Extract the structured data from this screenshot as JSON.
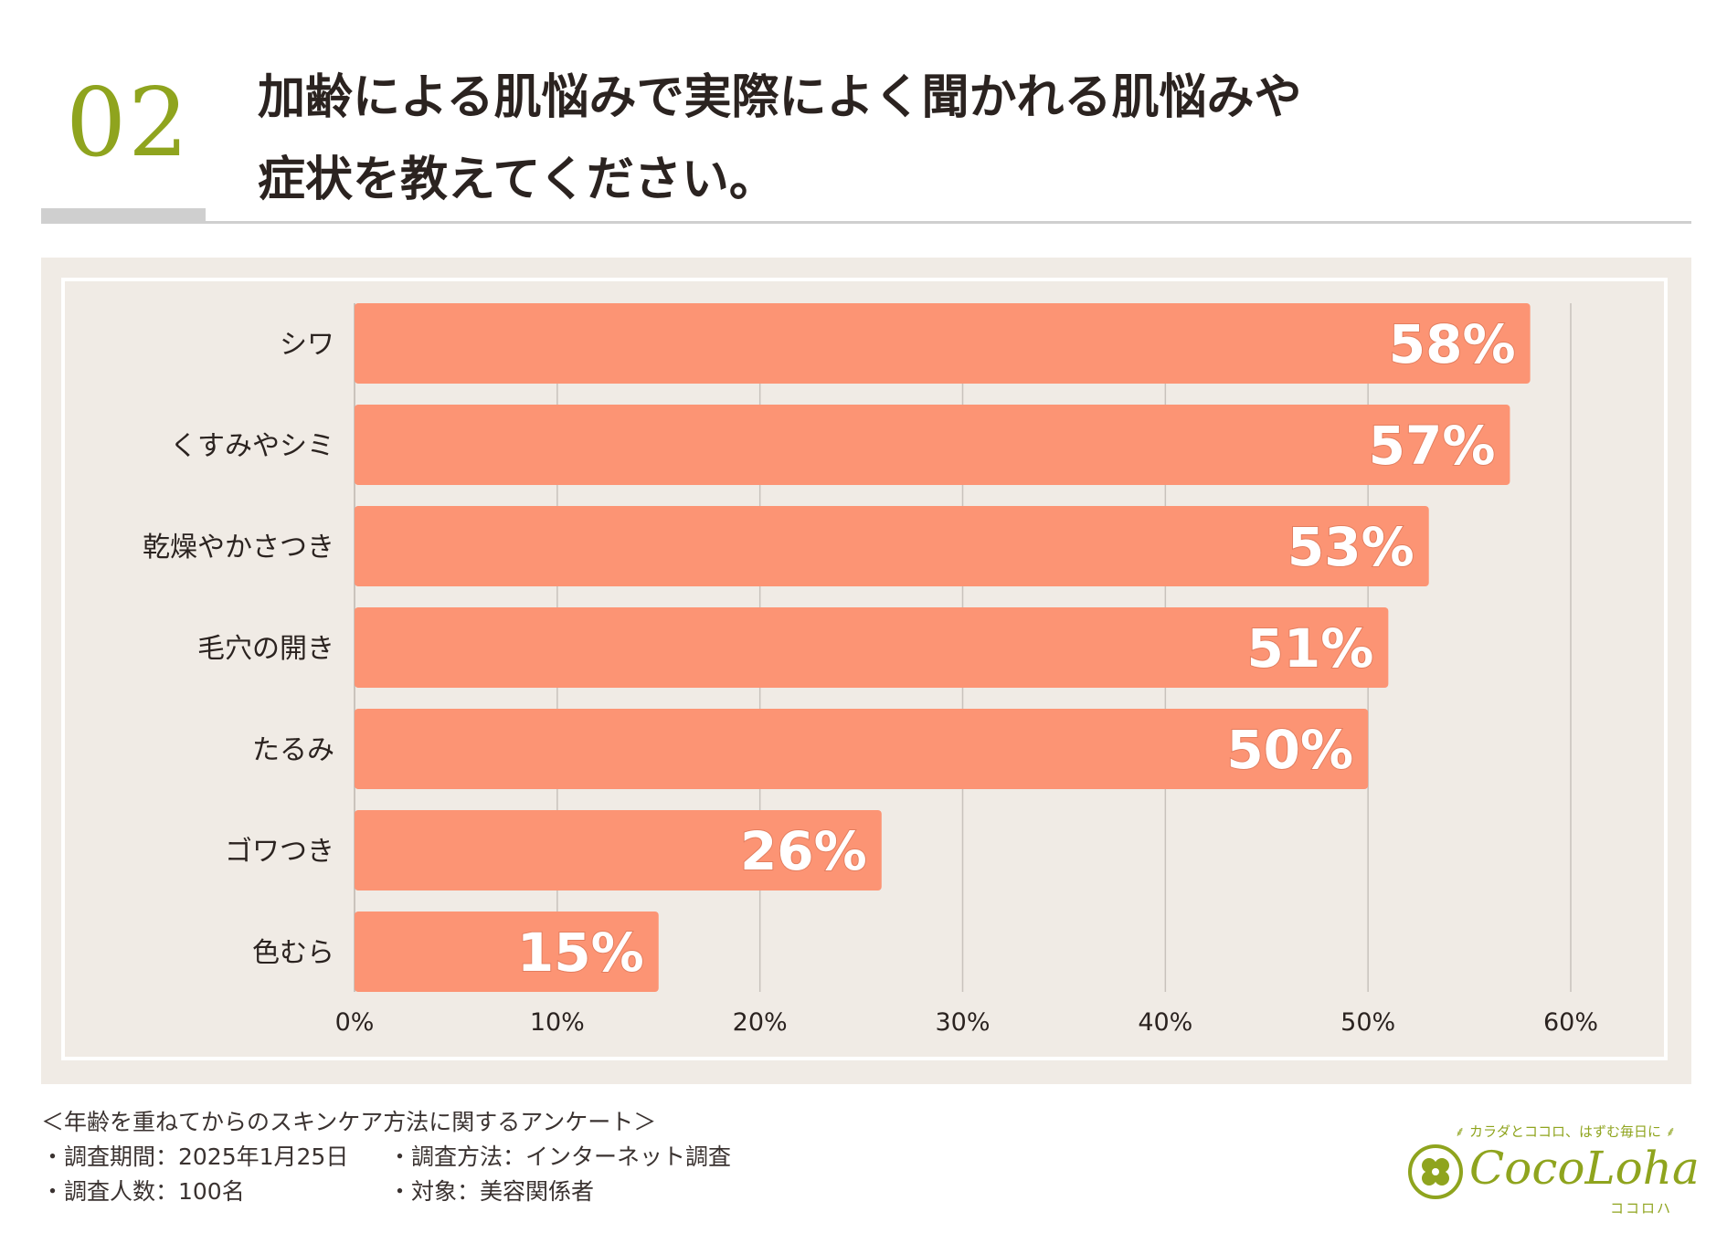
{
  "header": {
    "number": "02",
    "title_line1": "加齢による肌悩みで実際によく聞かれる肌悩みや",
    "title_line2": "症状を教えてください。"
  },
  "chart_data": {
    "type": "bar",
    "orientation": "horizontal",
    "categories": [
      "シワ",
      "くすみやシミ",
      "乾燥やかさつき",
      "毛穴の開き",
      "たるみ",
      "ゴワつき",
      "色むら"
    ],
    "values": [
      58,
      57,
      53,
      51,
      50,
      26,
      15
    ],
    "value_labels": [
      "58%",
      "57%",
      "53%",
      "51%",
      "50%",
      "26%",
      "15%"
    ],
    "xlim": [
      0,
      60
    ],
    "x_ticks": [
      "0%",
      "10%",
      "20%",
      "30%",
      "40%",
      "50%",
      "60%"
    ],
    "grid": true,
    "bar_color": "#fc9474",
    "label_color": "#ffffff"
  },
  "footer": {
    "survey_title": "＜年齢を重ねてからのスキンケア方法に関するアンケート＞",
    "period": "・調査期間：2025年1月25日",
    "method": "・調査方法：インターネット調査",
    "count": "・調査人数：100名",
    "target": "・対象：美容関係者"
  },
  "logo": {
    "tagline": "⸙ カラダとココロ、はずむ毎日に ⸙",
    "name": "CocoLoha",
    "sub": "ココロハ",
    "color": "#8fa41e"
  },
  "colors": {
    "accent": "#8fa41e",
    "panel": "#f0ebe5",
    "bar": "#fc9474",
    "grid": "#c8c2bc"
  }
}
